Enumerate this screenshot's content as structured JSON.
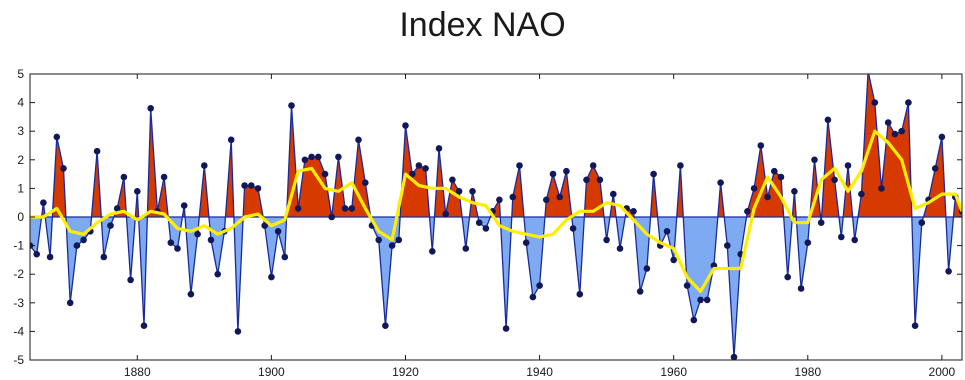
{
  "chart_data": {
    "type": "area",
    "title": "Index NAO",
    "xlabel": "",
    "ylabel": "",
    "xlim": [
      1864,
      2003
    ],
    "ylim": [
      -5,
      5
    ],
    "x_ticks": [
      1880,
      1900,
      1920,
      1940,
      1960,
      1980,
      2000
    ],
    "y_ticks": [
      5,
      4,
      3,
      2,
      1,
      0,
      -1,
      -2,
      -3,
      -4,
      -5
    ],
    "grid": false,
    "legend": "none",
    "colors": {
      "positive_fill": "#d63a00",
      "negative_fill": "#7eaaf2",
      "index_line": "#1a2a9a",
      "marker": "#10185a",
      "smooth_line": "#ffee00",
      "zero_line": "#1a2a9a"
    },
    "series": [
      {
        "kind": "annual_index",
        "x": [
          1864,
          1865,
          1866,
          1867,
          1868,
          1869,
          1870,
          1871,
          1872,
          1873,
          1874,
          1875,
          1876,
          1877,
          1878,
          1879,
          1880,
          1881,
          1882,
          1883,
          1884,
          1885,
          1886,
          1887,
          1888,
          1889,
          1890,
          1891,
          1892,
          1893,
          1894,
          1895,
          1896,
          1897,
          1898,
          1899,
          1900,
          1901,
          1902,
          1903,
          1904,
          1905,
          1906,
          1907,
          1908,
          1909,
          1910,
          1911,
          1912,
          1913,
          1914,
          1915,
          1916,
          1917,
          1918,
          1919,
          1920,
          1921,
          1922,
          1923,
          1924,
          1925,
          1926,
          1927,
          1928,
          1929,
          1930,
          1931,
          1932,
          1933,
          1934,
          1935,
          1936,
          1937,
          1938,
          1939,
          1940,
          1941,
          1942,
          1943,
          1944,
          1945,
          1946,
          1947,
          1948,
          1949,
          1950,
          1951,
          1952,
          1953,
          1954,
          1955,
          1956,
          1957,
          1958,
          1959,
          1960,
          1961,
          1962,
          1963,
          1964,
          1965,
          1966,
          1967,
          1968,
          1969,
          1970,
          1971,
          1972,
          1973,
          1974,
          1975,
          1976,
          1977,
          1978,
          1979,
          1980,
          1981,
          1982,
          1983,
          1984,
          1985,
          1986,
          1987,
          1988,
          1989,
          1990,
          1991,
          1992,
          1993,
          1994,
          1995,
          1996,
          1997,
          1998,
          1999,
          2000,
          2001,
          2002,
          2003
        ],
        "values": [
          -1.0,
          -1.3,
          0.5,
          -1.4,
          2.8,
          1.7,
          -3.0,
          -1.0,
          -0.8,
          -0.5,
          2.3,
          -1.4,
          -0.3,
          0.3,
          1.4,
          -2.2,
          0.9,
          -3.8,
          3.8,
          0.2,
          1.4,
          -0.9,
          -1.1,
          0.4,
          -2.7,
          -0.6,
          1.8,
          -0.8,
          -2.0,
          -0.5,
          2.7,
          -4.0,
          1.1,
          1.1,
          1.0,
          -0.3,
          -2.1,
          -0.5,
          -1.4,
          3.9,
          0.3,
          2.0,
          2.1,
          2.1,
          1.5,
          0.0,
          2.1,
          0.3,
          0.3,
          2.7,
          1.2,
          -0.3,
          -0.8,
          -3.8,
          -1.0,
          -0.8,
          3.2,
          1.5,
          1.8,
          1.7,
          -1.2,
          2.4,
          0.1,
          1.3,
          0.9,
          -1.1,
          0.9,
          -0.2,
          -0.4,
          0.2,
          0.6,
          -3.9,
          0.7,
          1.8,
          -0.9,
          -2.8,
          -2.4,
          0.6,
          1.5,
          0.7,
          1.6,
          -0.4,
          -2.7,
          1.3,
          1.8,
          1.3,
          -0.8,
          0.8,
          -1.1,
          0.3,
          0.2,
          -2.6,
          -1.8,
          1.5,
          -1.0,
          -0.5,
          -1.5,
          1.8,
          -2.4,
          -3.6,
          -2.9,
          -2.9,
          -1.7,
          1.2,
          -1.0,
          -4.9,
          -1.3,
          0.2,
          1.0,
          2.5,
          0.7,
          1.6,
          1.4,
          -2.1,
          0.9,
          -2.5,
          -0.9,
          2.0,
          -0.2,
          3.4,
          1.3,
          -0.7,
          1.8,
          -0.8,
          0.8,
          5.1,
          4.0,
          1.0,
          3.3,
          2.9,
          3.0,
          4.0,
          -3.8,
          -0.2,
          0.6,
          1.7,
          2.8,
          -1.9,
          0.7,
          0.2
        ]
      },
      {
        "kind": "smoothed",
        "x": [
          1864,
          1866,
          1868,
          1870,
          1872,
          1874,
          1876,
          1878,
          1880,
          1882,
          1884,
          1886,
          1888,
          1890,
          1892,
          1894,
          1896,
          1898,
          1900,
          1902,
          1904,
          1906,
          1908,
          1910,
          1912,
          1914,
          1916,
          1918,
          1920,
          1922,
          1924,
          1926,
          1928,
          1930,
          1932,
          1934,
          1936,
          1938,
          1940,
          1942,
          1944,
          1946,
          1948,
          1950,
          1952,
          1954,
          1956,
          1958,
          1960,
          1962,
          1964,
          1966,
          1968,
          1970,
          1972,
          1974,
          1976,
          1978,
          1980,
          1982,
          1984,
          1986,
          1988,
          1990,
          1992,
          1994,
          1996,
          1998,
          2000,
          2002,
          2003
        ],
        "values": [
          0.0,
          0.0,
          0.3,
          -0.5,
          -0.6,
          -0.2,
          0.1,
          0.2,
          -0.1,
          0.2,
          0.1,
          -0.4,
          -0.5,
          -0.3,
          -0.6,
          -0.4,
          0.0,
          0.1,
          -0.3,
          -0.1,
          1.6,
          1.7,
          1.0,
          0.9,
          1.2,
          0.3,
          -0.5,
          -0.8,
          1.5,
          1.1,
          1.0,
          1.0,
          0.7,
          0.5,
          0.4,
          -0.3,
          -0.5,
          -0.6,
          -0.7,
          -0.6,
          -0.1,
          0.2,
          0.2,
          0.5,
          0.4,
          -0.1,
          -0.6,
          -0.9,
          -1.1,
          -2.1,
          -2.6,
          -1.8,
          -1.8,
          -1.8,
          0.3,
          1.4,
          0.7,
          -0.2,
          -0.2,
          1.3,
          1.7,
          0.9,
          1.6,
          3.0,
          2.6,
          2.0,
          0.3,
          0.5,
          0.8,
          0.8,
          0.2
        ]
      }
    ]
  }
}
